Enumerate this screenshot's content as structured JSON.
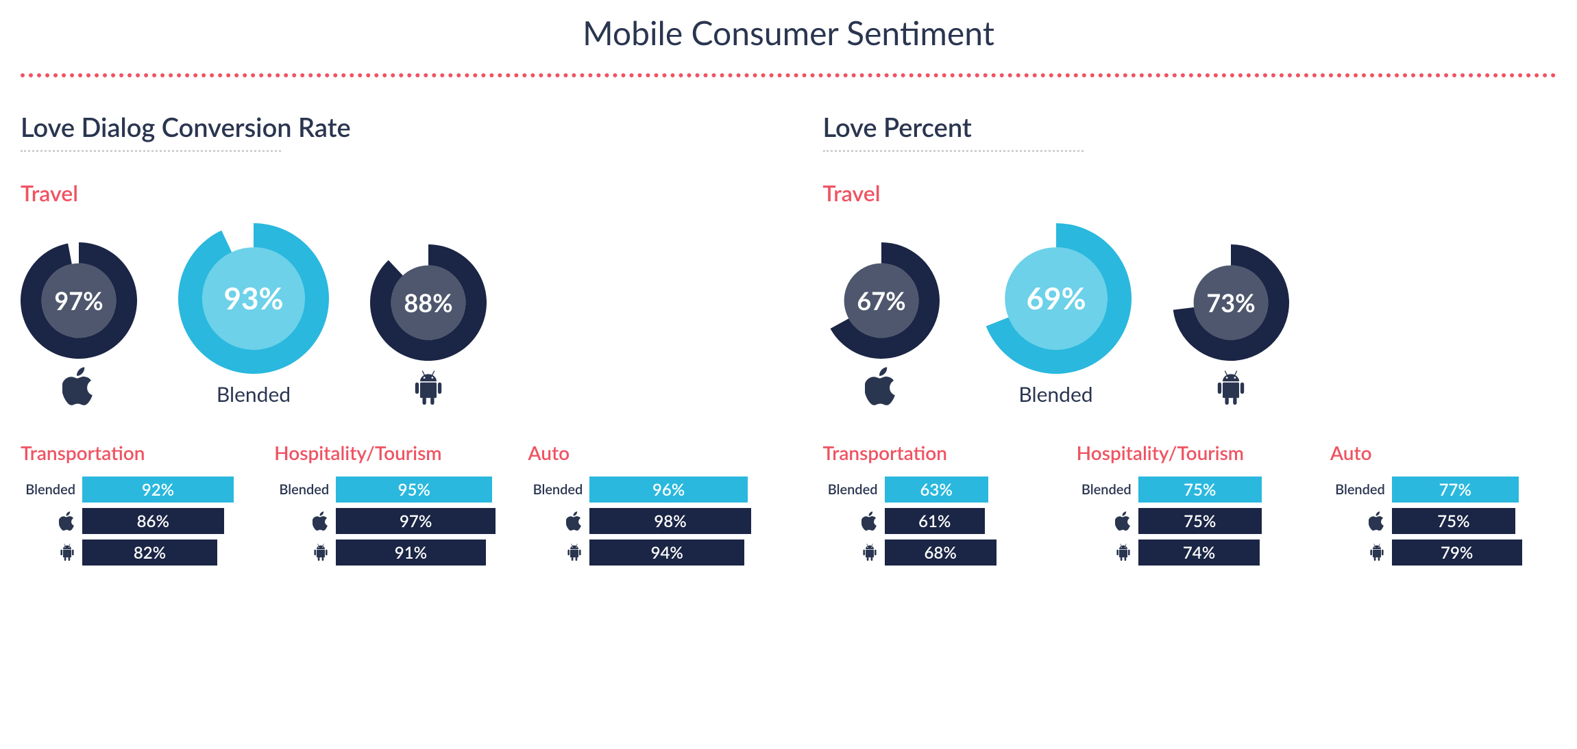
{
  "title": "Mobile Consumer Sentiment",
  "colors": {
    "title": "#2a3550",
    "heading": "#2a3550",
    "accent": "#ef5362",
    "dotted": "#ef5362",
    "mini_dotted": "#d0d0d0",
    "donut_dark_ring": "#1b2545",
    "donut_dark_fill": "#4e576d",
    "donut_cyan_ring": "#2ab8de",
    "donut_cyan_fill": "#6cd1e9",
    "bar_cyan": "#2ab8de",
    "bar_navy": "#1b2545",
    "icon_navy": "#2a3550",
    "text_white": "#ffffff",
    "sublabel": "#2a3550"
  },
  "left": {
    "heading": "Love Dialog Conversion Rate",
    "travel": {
      "label": "Travel",
      "donuts": [
        {
          "platform": "apple",
          "value": 97,
          "size": 170,
          "variant": "dark"
        },
        {
          "platform": "blended",
          "value": 93,
          "size": 220,
          "variant": "cyan",
          "label": "Blended"
        },
        {
          "platform": "android",
          "value": 88,
          "size": 170,
          "variant": "dark"
        }
      ]
    },
    "subcats": [
      {
        "title": "Transportation",
        "bars": [
          {
            "platform": "blended",
            "label": "Blended",
            "value": 92,
            "color": "cyan"
          },
          {
            "platform": "apple",
            "value": 86,
            "color": "navy"
          },
          {
            "platform": "android",
            "value": 82,
            "color": "navy"
          }
        ]
      },
      {
        "title": "Hospitality/Tourism",
        "bars": [
          {
            "platform": "blended",
            "label": "Blended",
            "value": 95,
            "color": "cyan"
          },
          {
            "platform": "apple",
            "value": 97,
            "color": "navy"
          },
          {
            "platform": "android",
            "value": 91,
            "color": "navy"
          }
        ]
      },
      {
        "title": "Auto",
        "bars": [
          {
            "platform": "blended",
            "label": "Blended",
            "value": 96,
            "color": "cyan"
          },
          {
            "platform": "apple",
            "value": 98,
            "color": "navy"
          },
          {
            "platform": "android",
            "value": 94,
            "color": "navy"
          }
        ]
      }
    ]
  },
  "right": {
    "heading": "Love Percent",
    "travel": {
      "label": "Travel",
      "donuts": [
        {
          "platform": "apple",
          "value": 67,
          "size": 170,
          "variant": "dark"
        },
        {
          "platform": "blended",
          "value": 69,
          "size": 220,
          "variant": "cyan",
          "label": "Blended"
        },
        {
          "platform": "android",
          "value": 73,
          "size": 170,
          "variant": "dark"
        }
      ]
    },
    "subcats": [
      {
        "title": "Transportation",
        "bars": [
          {
            "platform": "blended",
            "label": "Blended",
            "value": 63,
            "color": "cyan"
          },
          {
            "platform": "apple",
            "value": 61,
            "color": "navy"
          },
          {
            "platform": "android",
            "value": 68,
            "color": "navy"
          }
        ]
      },
      {
        "title": "Hospitality/Tourism",
        "bars": [
          {
            "platform": "blended",
            "label": "Blended",
            "value": 75,
            "color": "cyan"
          },
          {
            "platform": "apple",
            "value": 75,
            "color": "navy"
          },
          {
            "platform": "android",
            "value": 74,
            "color": "navy"
          }
        ]
      },
      {
        "title": "Auto",
        "bars": [
          {
            "platform": "blended",
            "label": "Blended",
            "value": 77,
            "color": "cyan"
          },
          {
            "platform": "apple",
            "value": 75,
            "color": "navy"
          },
          {
            "platform": "android",
            "value": 79,
            "color": "navy"
          }
        ]
      }
    ]
  }
}
